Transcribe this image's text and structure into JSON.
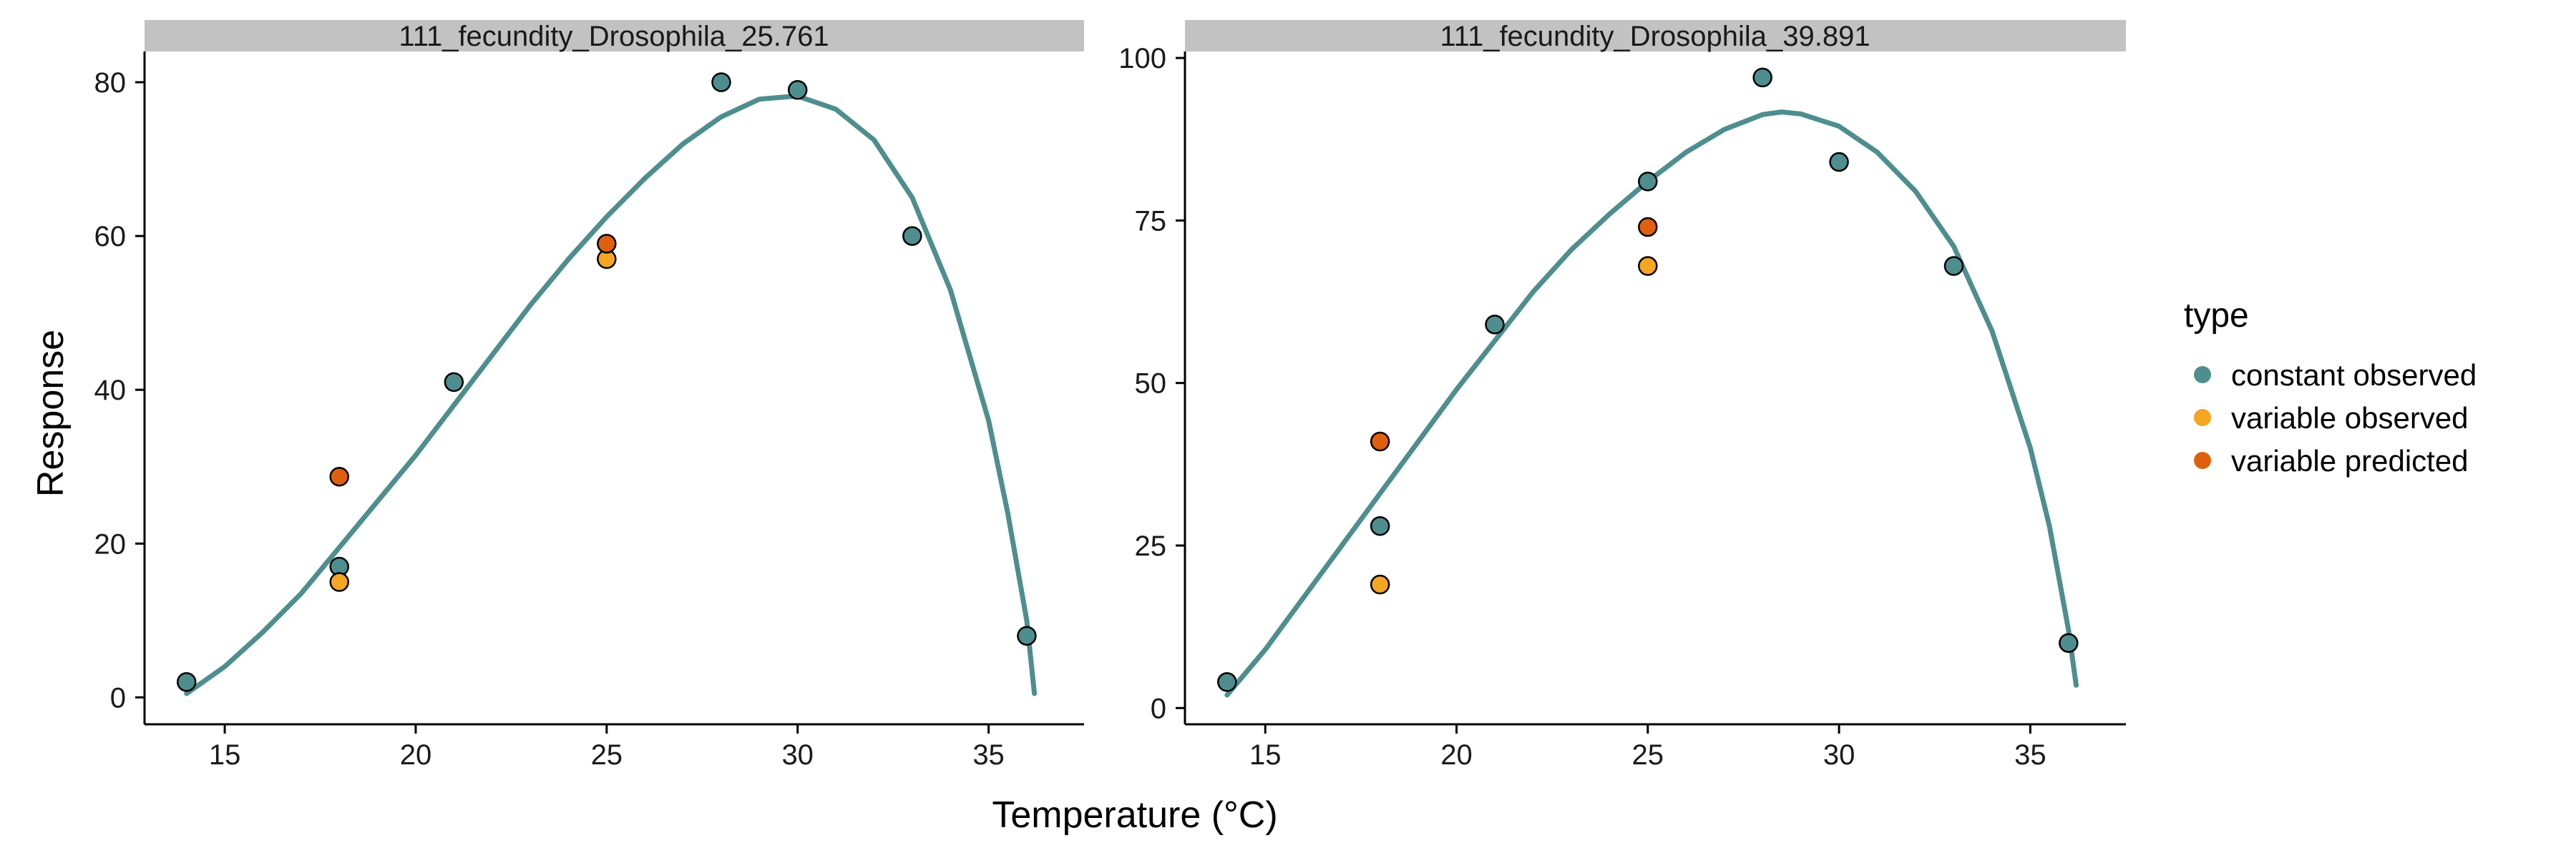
{
  "chart_data": {
    "type": "scatter",
    "xlabel": "Temperature (°C)",
    "ylabel": "Response",
    "legend": {
      "title": "type",
      "position": "right",
      "entries": [
        {
          "key": "constant",
          "label": "constant observed",
          "color": "#4E8E8E"
        },
        {
          "key": "var_obs",
          "label": "variable observed",
          "color": "#F5A623"
        },
        {
          "key": "var_pred",
          "label": "variable predicted",
          "color": "#E0600F"
        }
      ]
    },
    "curve_color": "#4E8E8E",
    "grid": false,
    "panels": [
      {
        "title": "111_fecundity_Drosophila_25.761",
        "xlim": [
          12.9,
          37.5
        ],
        "ylim": [
          -3.5,
          84
        ],
        "xticks": [
          15,
          20,
          25,
          30,
          35
        ],
        "yticks": [
          0,
          20,
          40,
          60,
          80
        ],
        "series": [
          {
            "key": "constant",
            "points": [
              [
                14,
                2
              ],
              [
                18,
                17
              ],
              [
                21,
                41
              ],
              [
                28,
                80
              ],
              [
                30,
                79
              ],
              [
                33,
                60
              ],
              [
                36,
                8
              ]
            ]
          },
          {
            "key": "var_obs",
            "points": [
              [
                18,
                15
              ],
              [
                25,
                57
              ]
            ]
          },
          {
            "key": "var_pred",
            "points": [
              [
                18,
                28.7
              ],
              [
                25,
                59
              ]
            ]
          }
        ],
        "fitted_curve": [
          [
            14,
            0.5
          ],
          [
            15,
            4
          ],
          [
            16,
            8.5
          ],
          [
            17,
            13.5
          ],
          [
            18,
            19.5
          ],
          [
            19,
            25.5
          ],
          [
            20,
            31.5
          ],
          [
            21,
            38
          ],
          [
            22,
            44.5
          ],
          [
            23,
            51
          ],
          [
            24,
            57
          ],
          [
            25,
            62.5
          ],
          [
            26,
            67.5
          ],
          [
            27,
            72
          ],
          [
            28,
            75.5
          ],
          [
            29,
            77.8
          ],
          [
            29.7,
            78.1
          ],
          [
            30,
            78.2
          ],
          [
            31,
            76.5
          ],
          [
            32,
            72.5
          ],
          [
            33,
            65
          ],
          [
            34,
            53
          ],
          [
            35,
            36
          ],
          [
            35.5,
            24
          ],
          [
            36,
            10
          ],
          [
            36.2,
            0.5
          ]
        ]
      },
      {
        "title": "111_fecundity_Drosophila_39.891",
        "xlim": [
          12.9,
          37.5
        ],
        "ylim": [
          -2.5,
          101
        ],
        "xticks": [
          15,
          20,
          25,
          30,
          35
        ],
        "yticks": [
          0,
          25,
          50,
          75,
          100
        ],
        "series": [
          {
            "key": "constant",
            "points": [
              [
                14,
                4
              ],
              [
                18,
                28
              ],
              [
                21,
                59
              ],
              [
                25,
                81
              ],
              [
                28,
                97
              ],
              [
                30,
                84
              ],
              [
                33,
                68
              ],
              [
                36,
                10
              ]
            ]
          },
          {
            "key": "var_obs",
            "points": [
              [
                18,
                19
              ],
              [
                25,
                68
              ]
            ]
          },
          {
            "key": "var_pred",
            "points": [
              [
                18,
                41
              ],
              [
                25,
                74
              ]
            ]
          }
        ],
        "fitted_curve": [
          [
            14,
            2
          ],
          [
            15,
            9
          ],
          [
            16,
            17
          ],
          [
            17,
            25
          ],
          [
            18,
            33
          ],
          [
            19,
            41
          ],
          [
            20,
            49
          ],
          [
            21,
            56.5
          ],
          [
            22,
            64
          ],
          [
            23,
            70.5
          ],
          [
            24,
            76
          ],
          [
            25,
            81
          ],
          [
            26,
            85.5
          ],
          [
            27,
            89
          ],
          [
            28,
            91.3
          ],
          [
            28.5,
            91.7
          ],
          [
            29,
            91.4
          ],
          [
            30,
            89.5
          ],
          [
            31,
            85.5
          ],
          [
            32,
            79.5
          ],
          [
            33,
            71
          ],
          [
            34,
            58
          ],
          [
            35,
            40
          ],
          [
            35.5,
            28
          ],
          [
            36,
            12
          ],
          [
            36.2,
            3.5
          ]
        ]
      }
    ]
  }
}
